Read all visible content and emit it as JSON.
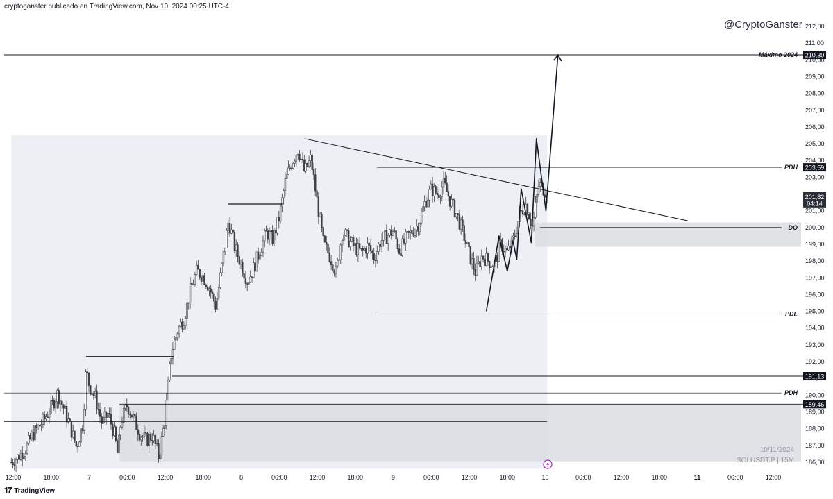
{
  "header": {
    "attribution": "cryptoganster publicado en TradingView.com, Nov 10, 2024 00:25 UTC-4",
    "watermark": "@CryptoGanster"
  },
  "footer": {
    "brand": "TradingView",
    "date": "10/11/2024",
    "symbol": "SOLUSDT.P | 15M"
  },
  "colors": {
    "candle": "#3d3f45",
    "zone_light": "#eceff4",
    "zone_dark": "#dcdde2",
    "line": "#131722",
    "tag_bg": "#131722",
    "tag_current": "#2a2e39",
    "alert": "#9c27b0"
  },
  "chart_data": {
    "type": "candlestick",
    "symbol": "SOLUSDT.P",
    "interval": "15M",
    "ylim": [
      185.6,
      212.6
    ],
    "y_ticks": [
      "212,00",
      "211,00",
      "210,00",
      "209,00",
      "208,00",
      "207,00",
      "206,00",
      "205,00",
      "204,00",
      "203,00",
      "202,00",
      "201,00",
      "200,00",
      "199,00",
      "198,00",
      "197,00",
      "196,00",
      "195,00",
      "194,00",
      "193,00",
      "192,00",
      "191,00",
      "190,00",
      "189,00",
      "188,00",
      "187,00",
      "186,00"
    ],
    "x_ticks": [
      {
        "label": "12:00",
        "h": 0
      },
      {
        "label": "18:00",
        "h": 6
      },
      {
        "label": "7",
        "h": 12
      },
      {
        "label": "06:00",
        "h": 18
      },
      {
        "label": "12:00",
        "h": 24
      },
      {
        "label": "18:00",
        "h": 30
      },
      {
        "label": "8",
        "h": 36
      },
      {
        "label": "06:00",
        "h": 42
      },
      {
        "label": "12:00",
        "h": 48
      },
      {
        "label": "18:00",
        "h": 54
      },
      {
        "label": "9",
        "h": 60
      },
      {
        "label": "06:00",
        "h": 66
      },
      {
        "label": "12:00",
        "h": 72
      },
      {
        "label": "18:00",
        "h": 78
      },
      {
        "label": "10",
        "h": 84
      },
      {
        "label": "06:00",
        "h": 90
      },
      {
        "label": "12:00",
        "h": 96
      },
      {
        "label": "18:00",
        "h": 102
      },
      {
        "label": "11",
        "h": 108,
        "bold": true
      },
      {
        "label": "06:00",
        "h": 114
      },
      {
        "label": "12:00",
        "h": 120
      }
    ],
    "price_path": [
      [
        -0.3,
        186.0
      ],
      [
        1,
        186.4
      ],
      [
        2,
        186.8
      ],
      [
        3,
        187.6
      ],
      [
        4,
        188.1
      ],
      [
        5,
        188.6
      ],
      [
        6,
        189.3
      ],
      [
        7,
        190.1
      ],
      [
        8,
        189.2
      ],
      [
        9,
        188.1
      ],
      [
        10,
        186.9
      ],
      [
        11,
        188.3
      ],
      [
        11.5,
        191.5
      ],
      [
        12,
        190.6
      ],
      [
        13,
        189.8
      ],
      [
        14,
        188.3
      ],
      [
        15,
        188.9
      ],
      [
        16,
        187.6
      ],
      [
        16.5,
        186.4
      ],
      [
        17,
        188.4
      ],
      [
        18,
        189.4
      ],
      [
        19,
        188.6
      ],
      [
        20,
        187.7
      ],
      [
        21,
        187.3
      ],
      [
        22,
        187.6
      ],
      [
        23,
        186.3
      ],
      [
        24,
        188.6
      ],
      [
        24.5,
        190.8
      ],
      [
        25,
        192.6
      ],
      [
        26,
        193.9
      ],
      [
        27,
        194.6
      ],
      [
        28,
        196.3
      ],
      [
        29,
        197.4
      ],
      [
        30,
        197.1
      ],
      [
        31,
        196.4
      ],
      [
        32,
        195.3
      ],
      [
        33,
        197.8
      ],
      [
        34,
        200.4
      ],
      [
        35,
        198.8
      ],
      [
        36,
        197.8
      ],
      [
        37,
        196.8
      ],
      [
        38,
        197.6
      ],
      [
        39,
        198.7
      ],
      [
        40,
        199.7
      ],
      [
        41,
        199.3
      ],
      [
        42,
        200.6
      ],
      [
        43,
        202.8
      ],
      [
        44,
        203.9
      ],
      [
        45,
        204.7
      ],
      [
        46,
        203.3
      ],
      [
        47,
        204.1
      ],
      [
        48,
        201.5
      ],
      [
        49,
        199.0
      ],
      [
        50,
        198.3
      ],
      [
        51,
        197.3
      ],
      [
        52,
        199.8
      ],
      [
        53,
        199.2
      ],
      [
        54,
        198.8
      ],
      [
        55,
        198.5
      ],
      [
        56,
        198.9
      ],
      [
        57,
        198.2
      ],
      [
        58,
        199.2
      ],
      [
        59,
        199.5
      ],
      [
        60,
        199.8
      ],
      [
        61,
        198.6
      ],
      [
        62,
        199.3
      ],
      [
        63,
        199.8
      ],
      [
        64,
        200.2
      ],
      [
        65,
        201.5
      ],
      [
        66,
        202.3
      ],
      [
        67,
        202.0
      ],
      [
        68,
        202.6
      ],
      [
        69,
        201.6
      ],
      [
        70,
        200.8
      ],
      [
        71,
        199.7
      ],
      [
        72,
        198.4
      ],
      [
        73,
        197.3
      ],
      [
        74,
        198.3
      ],
      [
        75,
        198.0
      ],
      [
        76,
        197.8
      ],
      [
        77,
        199.0
      ],
      [
        78,
        198.5
      ],
      [
        79,
        199.3
      ],
      [
        80,
        200.8
      ],
      [
        81,
        201.4
      ],
      [
        82,
        200.0
      ],
      [
        83,
        202.6
      ],
      [
        84,
        202.2
      ],
      [
        84.3,
        201.6
      ]
    ],
    "drawn_path": [
      [
        74.7,
        195.0
      ],
      [
        76.7,
        199.5
      ],
      [
        78.0,
        197.4
      ],
      [
        78.9,
        199.2
      ],
      [
        79.5,
        198.1
      ],
      [
        80.2,
        202.3
      ],
      [
        81.8,
        199.1
      ],
      [
        82.6,
        205.3
      ],
      [
        84.1,
        201.0
      ],
      [
        84.2,
        201.5
      ],
      [
        86.0,
        210.3
      ]
    ],
    "trendline": [
      [
        46.0,
        205.3
      ],
      [
        106.5,
        200.4
      ]
    ],
    "annotations": {
      "maximo_2024": {
        "label": "Máximo 2024",
        "price": 210.3,
        "tag": "210,30"
      },
      "pdh_upper": {
        "label": "PDH",
        "price": 203.59,
        "tag": "203,59",
        "from_h": 57.4
      },
      "current": {
        "tag": "201,82",
        "countdown": "04:14",
        "price": 201.82
      },
      "do": {
        "label": "DO",
        "price": 200.0,
        "from_h": 83.2
      },
      "pdl": {
        "label": "PDL",
        "price": 194.84,
        "from_h": 57.4
      },
      "level_191": {
        "tag": "191,13",
        "price": 191.13,
        "from_h": 25.1
      },
      "pdh_lower": {
        "label": "PDH",
        "price": 190.13
      },
      "level_189": {
        "tag": "189,46",
        "price": 189.46,
        "from_h": 16.8
      },
      "level_188": {
        "price": 188.43,
        "to_h": 84.3
      }
    },
    "step_lines": [
      {
        "h1": 11.5,
        "h2": 25.3,
        "price": 192.3
      },
      {
        "h1": 33.9,
        "h2": 42.7,
        "price": 201.4
      }
    ],
    "zones": [
      {
        "kind": "range",
        "h1": -0.3,
        "h2": 84.3,
        "top": 205.5,
        "bottom": 185.6
      },
      {
        "kind": "demand",
        "h1": 16.8,
        "h2": 124.5,
        "top": 189.46,
        "bottom": 186.05
      },
      {
        "kind": "order_block",
        "h1": 82.4,
        "h2": 124.5,
        "top": 200.3,
        "bottom": 198.85
      }
    ]
  }
}
